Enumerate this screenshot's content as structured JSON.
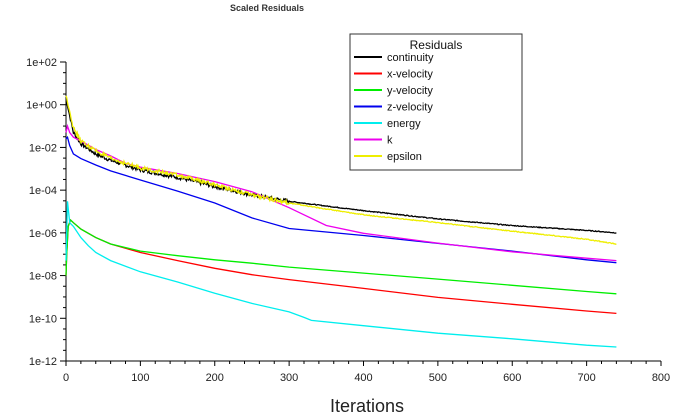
{
  "chart_data": {
    "type": "line",
    "title": "Scaled Residuals",
    "xlabel": "Iterations",
    "ylabel": "",
    "yscale": "log",
    "xlim": [
      0,
      800
    ],
    "ylim": [
      1e-12,
      100.0
    ],
    "xticks": [
      0,
      100,
      200,
      300,
      400,
      500,
      600,
      700,
      800
    ],
    "xtick_labels": [
      "0",
      "100",
      "200",
      "300",
      "400",
      "500",
      "600",
      "700",
      "800"
    ],
    "yticks": [
      1e-12,
      1e-10,
      1e-08,
      1e-06,
      0.0001,
      0.01,
      1,
      100
    ],
    "ytick_labels": [
      "1e-12",
      "1e-10",
      "1e-08",
      "1e-06",
      "1e-04",
      "1e-02",
      "1e+00",
      "1e+02"
    ],
    "grid": false,
    "legend": {
      "title": "Residuals",
      "position": "top-right-inside"
    },
    "series": [
      {
        "name": "continuity",
        "color": "#000000",
        "noisy": true,
        "x": [
          0,
          2,
          5,
          10,
          20,
          40,
          60,
          80,
          100,
          150,
          200,
          250,
          300,
          350,
          400,
          500,
          600,
          700,
          740
        ],
        "y": [
          1.5,
          1.0,
          0.3,
          0.05,
          0.015,
          0.005,
          0.0025,
          0.0015,
          0.0009,
          0.0004,
          0.00015,
          6e-05,
          3e-05,
          1.8e-05,
          1.1e-05,
          4.5e-06,
          2.2e-06,
          1.3e-06,
          1e-06
        ]
      },
      {
        "name": "x-velocity",
        "color": "#ff0000",
        "noisy": false,
        "x": [
          0,
          1,
          3,
          6,
          10,
          20,
          40,
          60,
          100,
          150,
          200,
          250,
          300,
          400,
          500,
          600,
          700,
          740
        ],
        "y": [
          1e-08,
          1e-07,
          2e-06,
          4e-06,
          3e-06,
          1.5e-06,
          6e-07,
          3e-07,
          1.2e-07,
          5e-08,
          2.2e-08,
          1.1e-08,
          6.5e-09,
          2.5e-09,
          9.5e-10,
          4.5e-10,
          2.2e-10,
          1.7e-10
        ]
      },
      {
        "name": "y-velocity",
        "color": "#00ee00",
        "noisy": false,
        "x": [
          0,
          1,
          3,
          6,
          10,
          20,
          40,
          60,
          100,
          150,
          200,
          250,
          300,
          400,
          500,
          600,
          700,
          740
        ],
        "y": [
          1e-08,
          1e-07,
          2e-06,
          4e-06,
          3e-06,
          1.5e-06,
          6e-07,
          3e-07,
          1.4e-07,
          8.5e-08,
          5.5e-08,
          3.8e-08,
          2.5e-08,
          1.3e-08,
          6.8e-09,
          3.5e-09,
          1.8e-09,
          1.4e-09
        ]
      },
      {
        "name": "z-velocity",
        "color": "#0000ee",
        "noisy": false,
        "x": [
          0,
          2,
          5,
          10,
          20,
          40,
          60,
          100,
          150,
          200,
          250,
          300,
          400,
          500,
          600,
          700,
          740
        ],
        "y": [
          0.025,
          0.03,
          0.012,
          0.005,
          0.003,
          0.0015,
          0.0008,
          0.0003,
          9e-05,
          2.5e-05,
          5e-06,
          1.6e-06,
          7.5e-07,
          3.2e-07,
          1.4e-07,
          5.5e-08,
          4e-08
        ]
      },
      {
        "name": "energy",
        "color": "#00eeee",
        "noisy": false,
        "x": [
          0,
          2,
          5,
          10,
          20,
          30,
          40,
          60,
          100,
          150,
          200,
          250,
          300,
          320,
          330,
          400,
          500,
          600,
          700,
          740
        ],
        "y": [
          5e-08,
          3e-05,
          3e-06,
          2e-06,
          6e-07,
          2.5e-07,
          1.2e-07,
          5e-08,
          1.5e-08,
          5e-09,
          1.5e-09,
          5e-10,
          2e-10,
          1.1e-10,
          8e-11,
          4.5e-11,
          2e-11,
          1.1e-11,
          5.5e-12,
          4.5e-12
        ]
      },
      {
        "name": "k",
        "color": "#ee00ee",
        "noisy": false,
        "x": [
          0,
          2,
          5,
          10,
          20,
          40,
          60,
          80,
          100,
          150,
          200,
          250,
          300,
          350,
          400,
          500,
          600,
          700,
          740
        ],
        "y": [
          0.05,
          0.1,
          0.05,
          0.03,
          0.02,
          0.008,
          0.004,
          0.0018,
          0.0012,
          0.0006,
          0.00025,
          8.5e-05,
          1.5e-05,
          2.2e-06,
          9.5e-07,
          3.3e-07,
          1.3e-07,
          6.5e-08,
          5e-08
        ]
      },
      {
        "name": "epsilon",
        "color": "#eeee00",
        "noisy": true,
        "x": [
          0,
          2,
          5,
          10,
          20,
          40,
          60,
          80,
          100,
          150,
          200,
          250,
          300,
          350,
          400,
          500,
          600,
          700,
          740
        ],
        "y": [
          2.5,
          1.5,
          0.5,
          0.08,
          0.02,
          0.007,
          0.003,
          0.0018,
          0.0011,
          0.0005,
          0.00018,
          6e-05,
          2.5e-05,
          1.3e-05,
          7e-06,
          3e-06,
          1.2e-06,
          5e-07,
          3e-07
        ]
      }
    ]
  }
}
